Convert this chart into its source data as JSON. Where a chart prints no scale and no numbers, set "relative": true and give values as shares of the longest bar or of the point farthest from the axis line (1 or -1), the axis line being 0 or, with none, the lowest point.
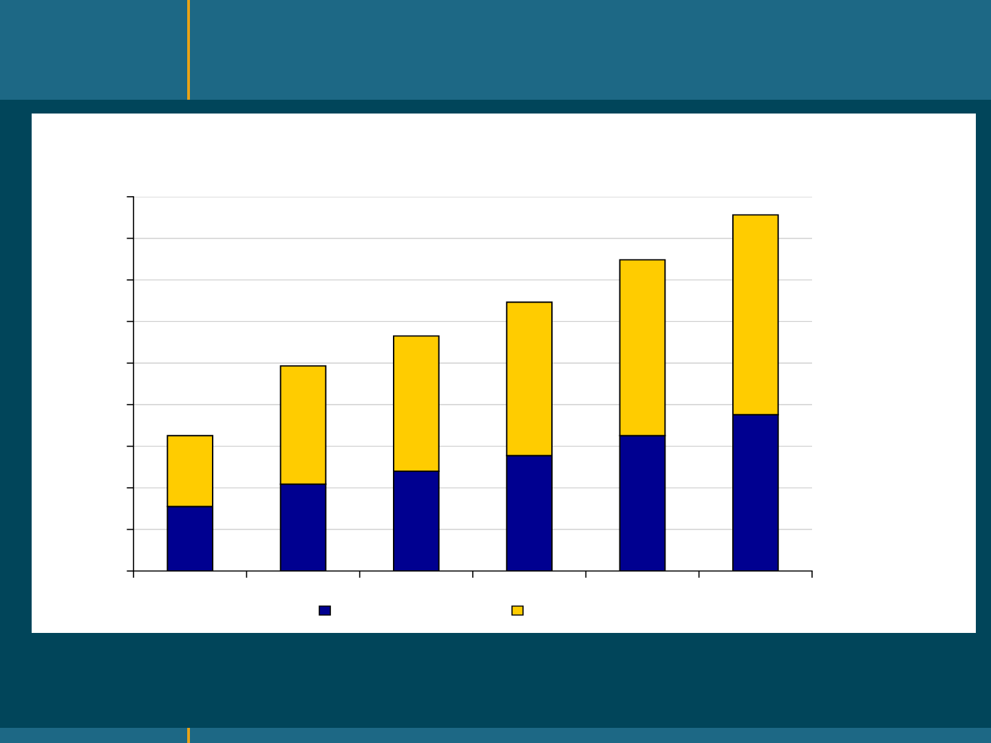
{
  "chart_data": {
    "type": "bar",
    "stacked": true,
    "relative": true,
    "categories": [
      null,
      null,
      null,
      null,
      null,
      null
    ],
    "series": [
      {
        "color": "#000090",
        "values": [
          0.181,
          0.244,
          0.28,
          0.324,
          0.38,
          0.439
        ]
      },
      {
        "color": "#ffcc00",
        "values": [
          0.199,
          0.332,
          0.38,
          0.431,
          0.494,
          0.561
        ]
      }
    ],
    "grid": "y"
  }
}
